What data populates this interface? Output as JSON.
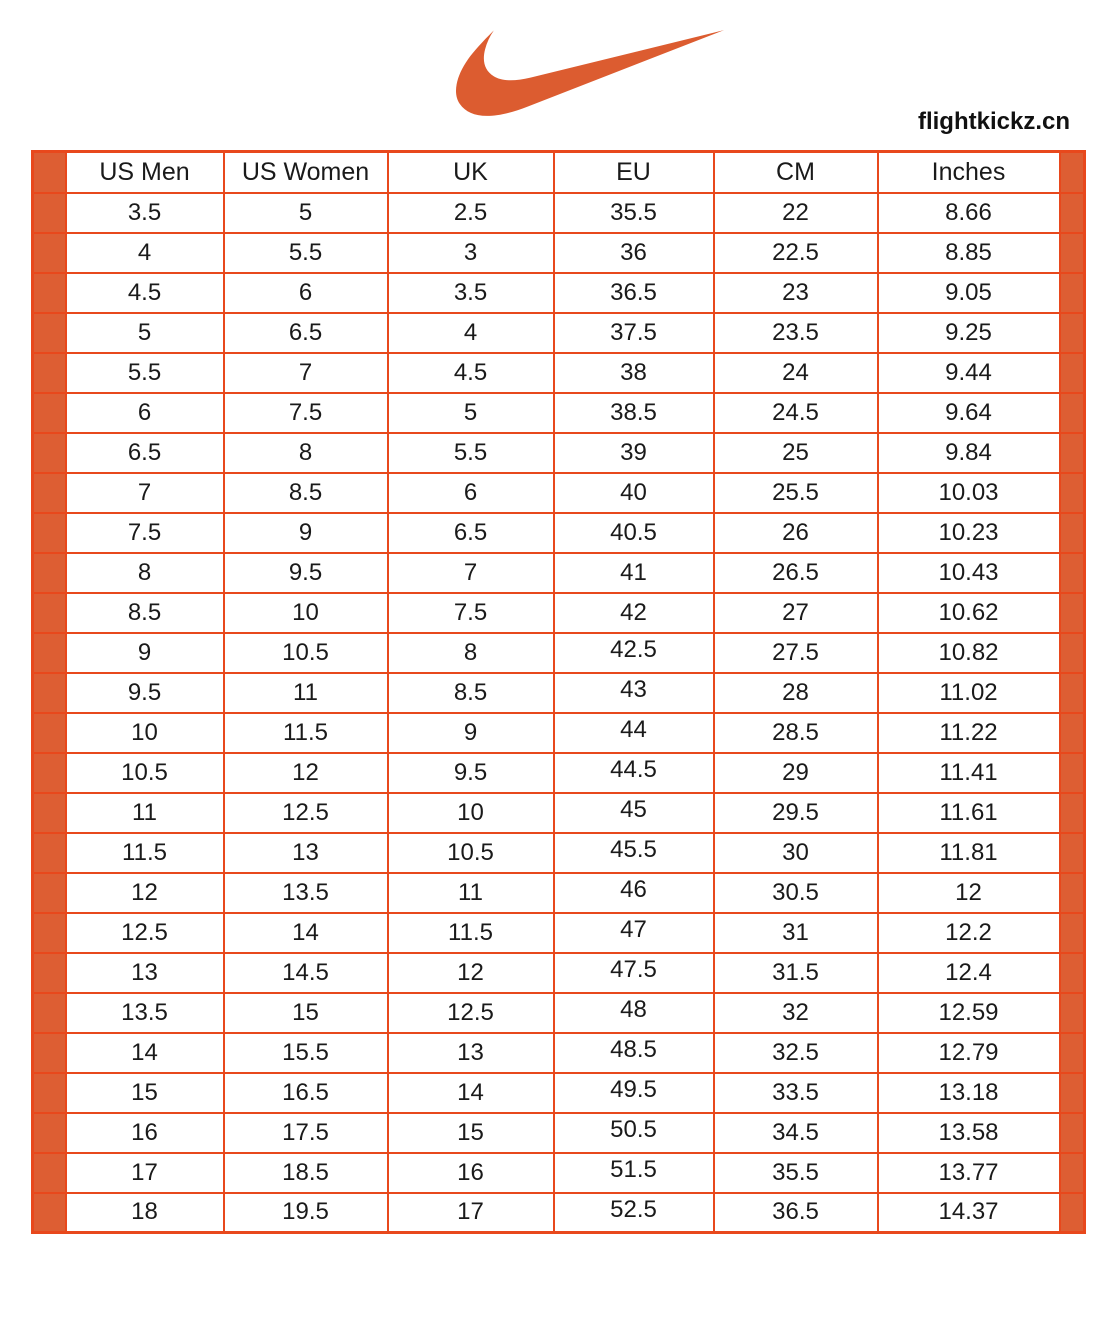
{
  "page": {
    "watermark": "flightkickz.cn",
    "logo": "nike-swoosh"
  },
  "colors": {
    "swoosh": "#DC5C30",
    "side_bar": "#DD5E33",
    "table_line": "#E8481C",
    "text": "#1A1A1A"
  },
  "table": {
    "headers": [
      "US Men",
      "US Women",
      "UK",
      "EU",
      "CM",
      "Inches"
    ],
    "rows": [
      [
        "3.5",
        "5",
        "2.5",
        "35.5",
        "22",
        "8.66"
      ],
      [
        "4",
        "5.5",
        "3",
        "36",
        "22.5",
        "8.85"
      ],
      [
        "4.5",
        "6",
        "3.5",
        "36.5",
        "23",
        "9.05"
      ],
      [
        "5",
        "6.5",
        "4",
        "37.5",
        "23.5",
        "9.25"
      ],
      [
        "5.5",
        "7",
        "4.5",
        "38",
        "24",
        "9.44"
      ],
      [
        "6",
        "7.5",
        "5",
        "38.5",
        "24.5",
        "9.64"
      ],
      [
        "6.5",
        "8",
        "5.5",
        "39",
        "25",
        "9.84"
      ],
      [
        "7",
        "8.5",
        "6",
        "40",
        "25.5",
        "10.03"
      ],
      [
        "7.5",
        "9",
        "6.5",
        "40.5",
        "26",
        "10.23"
      ],
      [
        "8",
        "9.5",
        "7",
        "41",
        "26.5",
        "10.43"
      ],
      [
        "8.5",
        "10",
        "7.5",
        "42",
        "27",
        "10.62"
      ],
      [
        "9",
        "10.5",
        "8",
        "42.5",
        "27.5",
        "10.82"
      ],
      [
        "9.5",
        "11",
        "8.5",
        "43",
        "28",
        "11.02"
      ],
      [
        "10",
        "11.5",
        "9",
        "44",
        "28.5",
        "11.22"
      ],
      [
        "10.5",
        "12",
        "9.5",
        "44.5",
        "29",
        "11.41"
      ],
      [
        "11",
        "12.5",
        "10",
        "45",
        "29.5",
        "11.61"
      ],
      [
        "11.5",
        "13",
        "10.5",
        "45.5",
        "30",
        "11.81"
      ],
      [
        "12",
        "13.5",
        "11",
        "46",
        "30.5",
        "12"
      ],
      [
        "12.5",
        "14",
        "11.5",
        "47",
        "31",
        "12.2"
      ],
      [
        "13",
        "14.5",
        "12",
        "47.5",
        "31.5",
        "12.4"
      ],
      [
        "13.5",
        "15",
        "12.5",
        "48",
        "32",
        "12.59"
      ],
      [
        "14",
        "15.5",
        "13",
        "48.5",
        "32.5",
        "12.79"
      ],
      [
        "15",
        "16.5",
        "14",
        "49.5",
        "33.5",
        "13.18"
      ],
      [
        "16",
        "17.5",
        "15",
        "50.5",
        "34.5",
        "13.58"
      ],
      [
        "17",
        "18.5",
        "16",
        "51.5",
        "35.5",
        "13.77"
      ],
      [
        "18",
        "19.5",
        "17",
        "52.5",
        "36.5",
        "14.37"
      ]
    ],
    "eu_raised_from_row_index": 11
  }
}
